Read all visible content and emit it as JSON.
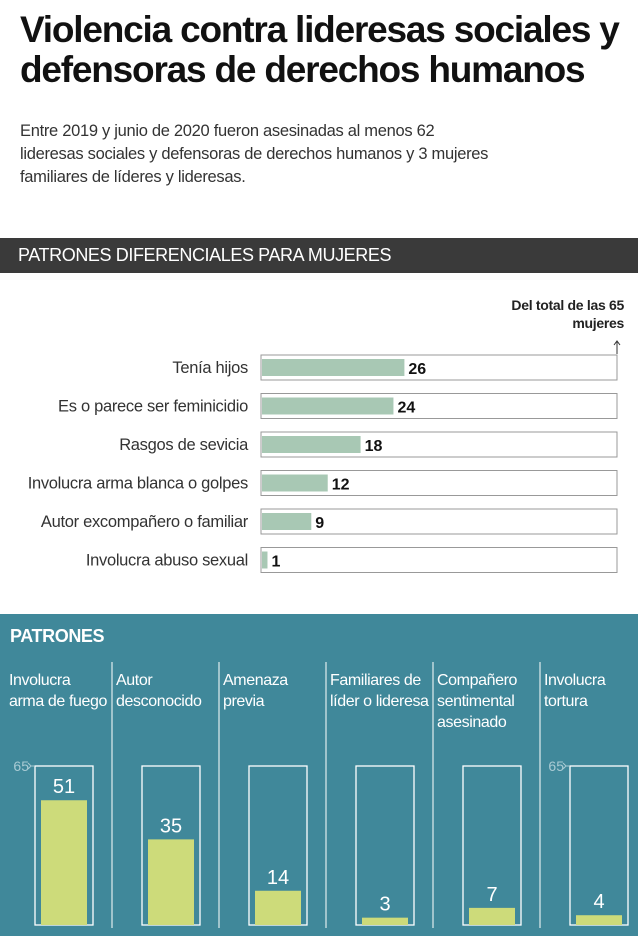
{
  "title": "Violencia contra lideresas sociales y defensoras de derechos humanos",
  "subtitle": "Entre 2019 y junio de 2020 fueron asesinadas al menos 62 lideresas sociales y defensoras de derechos humanos y 3 mujeres familiares de líderes y lideresas.",
  "section1_title": "PATRONES DIFERENCIALES PARA MUJERES",
  "section2_title": "PATRONES",
  "colors": {
    "bar1": "#a8c8b4",
    "bar2": "#cddb7a",
    "panel": "#40889a",
    "banner": "#3a3a3a"
  },
  "chart_data": [
    {
      "type": "bar",
      "orientation": "horizontal",
      "note": "Del total de las 65 mujeres",
      "categories": [
        "Tenía hijos",
        "Es o parece ser feminicidio",
        "Rasgos de sevicia",
        "Involucra arma blanca o golpes",
        "Autor excompañero o familiar",
        "Involucra abuso sexual"
      ],
      "values": [
        26,
        24,
        18,
        12,
        9,
        1
      ],
      "xlim": [
        0,
        65
      ]
    },
    {
      "type": "bar",
      "orientation": "vertical",
      "categories": [
        "Involucra arma de fuego",
        "Autor desconocido",
        "Amenaza previa",
        "Familiares de líder o lideresa",
        "Compañero sentimental asesinado",
        "Involucra tortura"
      ],
      "values": [
        51,
        35,
        14,
        3,
        7,
        4
      ],
      "max_label": "65",
      "ylim": [
        0,
        65
      ]
    }
  ]
}
